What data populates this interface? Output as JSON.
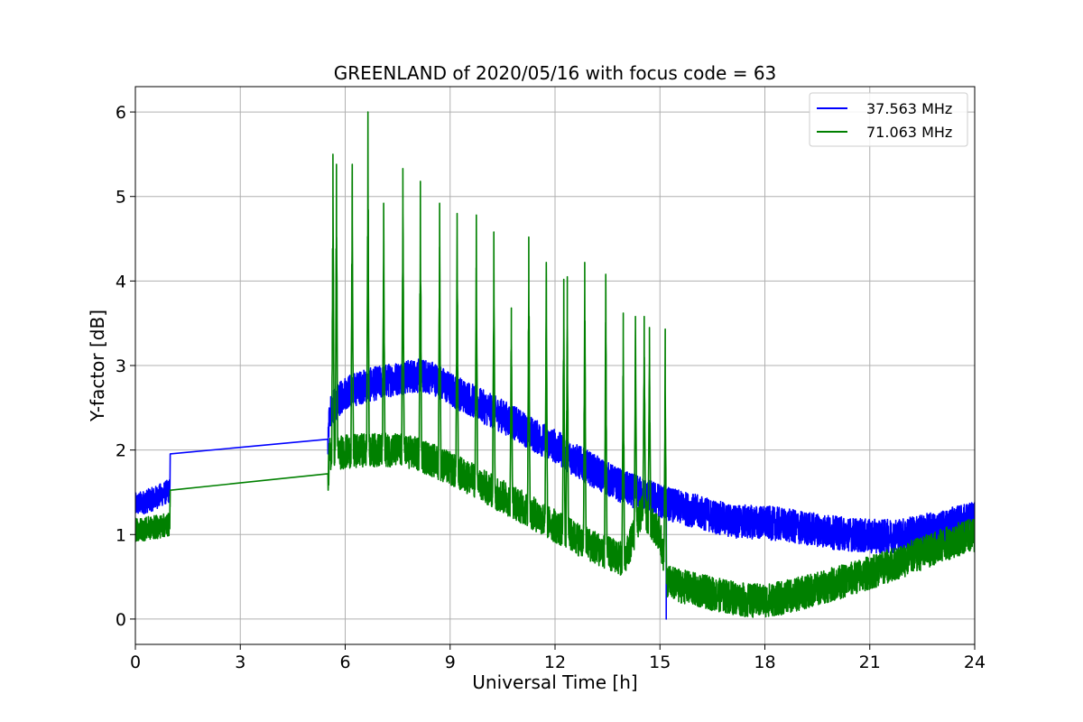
{
  "chart_data": {
    "type": "line",
    "title": "GREENLAND of 2020/05/16 with focus code = 63",
    "xlabel": "Universal Time [h]",
    "ylabel": "Y-factor [dB]",
    "xlim": [
      0,
      24
    ],
    "ylim": [
      -0.3,
      6.3
    ],
    "xticks": [
      0,
      3,
      6,
      9,
      12,
      15,
      18,
      21,
      24
    ],
    "yticks": [
      0,
      1,
      2,
      3,
      4,
      5,
      6
    ],
    "grid": true,
    "legend_position": "top-right",
    "series": [
      {
        "name": "37.563 MHz",
        "color": "#0000ff",
        "base": [
          [
            0.0,
            1.35
          ],
          [
            0.5,
            1.42
          ],
          [
            0.98,
            1.52
          ],
          [
            1.0,
            1.92
          ],
          [
            5.5,
            1.97
          ],
          [
            5.55,
            2.45
          ],
          [
            6.0,
            2.68
          ],
          [
            6.5,
            2.75
          ],
          [
            7.0,
            2.8
          ],
          [
            7.5,
            2.85
          ],
          [
            8.0,
            2.88
          ],
          [
            8.5,
            2.86
          ],
          [
            9.0,
            2.72
          ],
          [
            9.5,
            2.62
          ],
          [
            10.0,
            2.5
          ],
          [
            10.5,
            2.4
          ],
          [
            11.0,
            2.28
          ],
          [
            11.5,
            2.15
          ],
          [
            12.0,
            2.05
          ],
          [
            12.5,
            1.9
          ],
          [
            13.0,
            1.78
          ],
          [
            13.5,
            1.66
          ],
          [
            14.0,
            1.55
          ],
          [
            14.5,
            1.48
          ],
          [
            15.0,
            1.4
          ],
          [
            15.5,
            1.33
          ],
          [
            16.0,
            1.28
          ],
          [
            16.5,
            1.22
          ],
          [
            17.0,
            1.16
          ],
          [
            17.5,
            1.15
          ],
          [
            18.0,
            1.14
          ],
          [
            18.5,
            1.12
          ],
          [
            19.0,
            1.08
          ],
          [
            19.5,
            1.06
          ],
          [
            20.0,
            1.02
          ],
          [
            20.5,
            1.0
          ],
          [
            21.0,
            0.98
          ],
          [
            21.5,
            0.98
          ],
          [
            22.0,
            1.0
          ],
          [
            22.5,
            1.04
          ],
          [
            23.0,
            1.08
          ],
          [
            23.5,
            1.14
          ],
          [
            24.0,
            1.2
          ]
        ],
        "spikes": [
          [
            15.18,
            0.0
          ]
        ]
      },
      {
        "name": "71.063 MHz",
        "color": "#008000",
        "base": [
          [
            0.0,
            1.05
          ],
          [
            0.5,
            1.08
          ],
          [
            0.98,
            1.12
          ],
          [
            1.0,
            1.54
          ],
          [
            5.5,
            1.56
          ],
          [
            5.55,
            1.95
          ],
          [
            6.0,
            1.98
          ],
          [
            6.5,
            2.0
          ],
          [
            7.0,
            2.0
          ],
          [
            7.5,
            2.0
          ],
          [
            8.0,
            1.96
          ],
          [
            8.5,
            1.88
          ],
          [
            9.0,
            1.78
          ],
          [
            9.5,
            1.68
          ],
          [
            10.0,
            1.56
          ],
          [
            10.5,
            1.45
          ],
          [
            11.0,
            1.34
          ],
          [
            11.5,
            1.22
          ],
          [
            12.0,
            1.1
          ],
          [
            12.5,
            0.98
          ],
          [
            13.0,
            0.88
          ],
          [
            13.5,
            0.78
          ],
          [
            14.0,
            0.7
          ],
          [
            14.5,
            1.3
          ],
          [
            15.0,
            1.0
          ],
          [
            15.2,
            0.45
          ],
          [
            15.5,
            0.4
          ],
          [
            16.0,
            0.35
          ],
          [
            16.5,
            0.3
          ],
          [
            17.0,
            0.26
          ],
          [
            17.5,
            0.22
          ],
          [
            18.0,
            0.22
          ],
          [
            18.5,
            0.25
          ],
          [
            19.0,
            0.3
          ],
          [
            19.5,
            0.36
          ],
          [
            20.0,
            0.42
          ],
          [
            20.5,
            0.48
          ],
          [
            21.0,
            0.55
          ],
          [
            21.5,
            0.62
          ],
          [
            22.0,
            0.7
          ],
          [
            22.5,
            0.78
          ],
          [
            23.0,
            0.86
          ],
          [
            23.5,
            0.94
          ],
          [
            24.0,
            1.0
          ]
        ],
        "spikes": [
          [
            5.65,
            5.5
          ],
          [
            5.75,
            5.38
          ],
          [
            6.2,
            5.38
          ],
          [
            6.65,
            6.0
          ],
          [
            7.1,
            4.92
          ],
          [
            7.65,
            5.33
          ],
          [
            8.15,
            5.18
          ],
          [
            8.7,
            4.92
          ],
          [
            9.2,
            4.8
          ],
          [
            9.75,
            4.78
          ],
          [
            10.25,
            4.58
          ],
          [
            10.75,
            3.68
          ],
          [
            11.25,
            4.52
          ],
          [
            11.75,
            4.22
          ],
          [
            12.25,
            4.02
          ],
          [
            12.35,
            4.05
          ],
          [
            12.85,
            4.22
          ],
          [
            13.45,
            4.08
          ],
          [
            13.95,
            3.62
          ],
          [
            14.3,
            3.58
          ],
          [
            14.55,
            3.58
          ],
          [
            14.7,
            3.45
          ],
          [
            15.15,
            3.43
          ]
        ]
      }
    ]
  }
}
